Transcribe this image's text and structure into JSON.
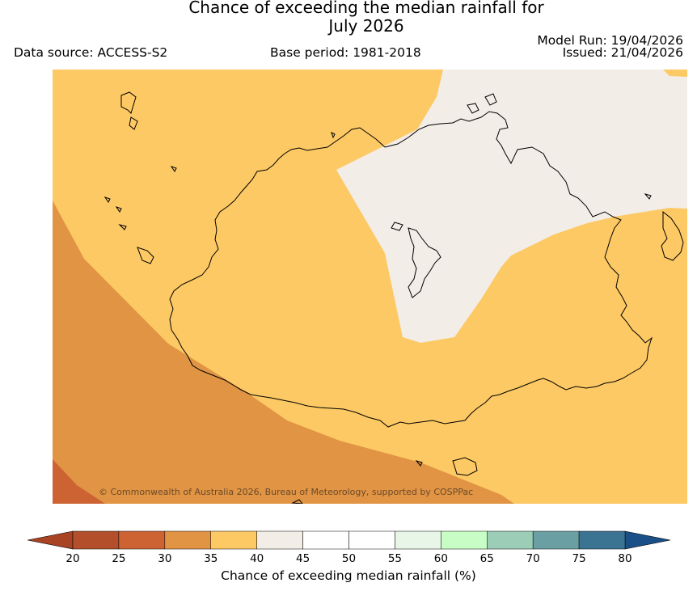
{
  "title": {
    "line1": "Chance of exceeding the median rainfall for",
    "line2": "July 2026"
  },
  "meta": {
    "data_source": "Data source: ACCESS-S2",
    "base_period": "Base period: 1981-2018",
    "model_run": "Model Run: 19/04/2026",
    "issued": "Issued: 21/04/2026"
  },
  "map": {
    "region": "Northern Australia",
    "copyright": "© Commonwealth of Australia 2026, Bureau of Meteorology, supported by COSPPac",
    "zones": [
      {
        "category": "35-40",
        "color": "#fdc964"
      },
      {
        "category": "30-35",
        "color": "#e09444"
      },
      {
        "category": "25-30",
        "color": "#cd6332"
      },
      {
        "category": "40-45",
        "color": "#f2ede6"
      }
    ]
  },
  "colorbar": {
    "label": "Chance of exceeding median rainfall (%)",
    "ticks": [
      "20",
      "25",
      "30",
      "35",
      "40",
      "45",
      "50",
      "55",
      "60",
      "65",
      "70",
      "75",
      "80"
    ],
    "low_extend_color": "#a84324",
    "high_extend_color": "#1b4f87",
    "bins": [
      {
        "range": "20-25",
        "color": "#b44f2c"
      },
      {
        "range": "25-30",
        "color": "#cd6332"
      },
      {
        "range": "30-35",
        "color": "#e09444"
      },
      {
        "range": "35-40",
        "color": "#fdc964"
      },
      {
        "range": "40-45",
        "color": "#f2ede6"
      },
      {
        "range": "45-50",
        "color": "#ffffff"
      },
      {
        "range": "50-55",
        "color": "#ffffff"
      },
      {
        "range": "55-60",
        "color": "#e7f6e7"
      },
      {
        "range": "60-65",
        "color": "#c8fdc6"
      },
      {
        "range": "65-70",
        "color": "#9ccdb7"
      },
      {
        "range": "70-75",
        "color": "#6aa0a3"
      },
      {
        "range": "75-80",
        "color": "#3b7392"
      }
    ]
  }
}
